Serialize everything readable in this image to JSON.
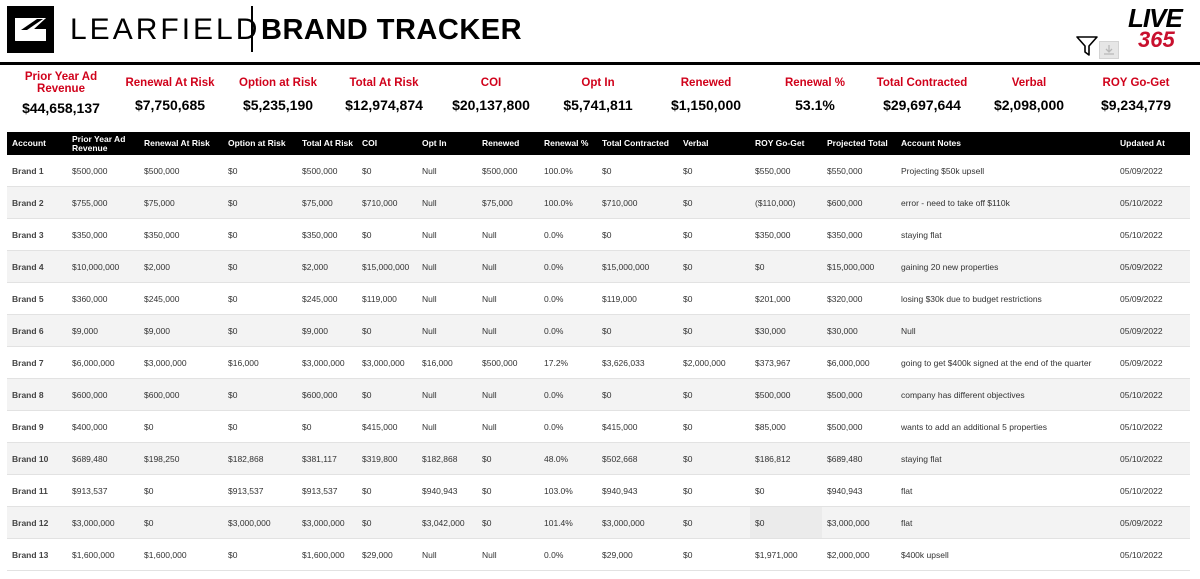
{
  "header": {
    "brand_left": "LEARFIELD",
    "brand_right": "BRAND TRACKER",
    "live_logo_text": "LIVE",
    "live_logo_num": "365"
  },
  "kpis": [
    {
      "label": "Prior Year Ad Revenue",
      "value": "$44,658,137"
    },
    {
      "label": "Renewal At Risk",
      "value": "$7,750,685"
    },
    {
      "label": "Option at Risk",
      "value": "$5,235,190"
    },
    {
      "label": "Total At Risk",
      "value": "$12,974,874"
    },
    {
      "label": "COI",
      "value": "$20,137,800"
    },
    {
      "label": "Opt In",
      "value": "$5,741,811"
    },
    {
      "label": "Renewed",
      "value": "$1,150,000"
    },
    {
      "label": "Renewal %",
      "value": "53.1%"
    },
    {
      "label": "Total Contracted",
      "value": "$29,697,644"
    },
    {
      "label": "Verbal",
      "value": "$2,098,000"
    },
    {
      "label": "ROY Go-Get",
      "value": "$9,234,779"
    }
  ],
  "table": {
    "columns": [
      "Account",
      "Prior Year Ad Revenue",
      "Renewal At Risk",
      "Option at Risk",
      "Total At Risk",
      "COI",
      "Opt In",
      "Renewed",
      "Renewal %",
      "Total Contracted",
      "Verbal",
      "ROY Go-Get",
      "Projected Total",
      "Account Notes",
      "Updated At"
    ],
    "rows": [
      [
        "Brand 1",
        "$500,000",
        "$500,000",
        "$0",
        "$500,000",
        "$0",
        "Null",
        "$500,000",
        "100.0%",
        "$0",
        "$0",
        "$550,000",
        "$550,000",
        "Projecting $50k upsell",
        "05/09/2022"
      ],
      [
        "Brand 2",
        "$755,000",
        "$75,000",
        "$0",
        "$75,000",
        "$710,000",
        "Null",
        "$75,000",
        "100.0%",
        "$710,000",
        "$0",
        "($110,000)",
        "$600,000",
        "error - need to take off $110k",
        "05/10/2022"
      ],
      [
        "Brand 3",
        "$350,000",
        "$350,000",
        "$0",
        "$350,000",
        "$0",
        "Null",
        "Null",
        "0.0%",
        "$0",
        "$0",
        "$350,000",
        "$350,000",
        "staying flat",
        "05/10/2022"
      ],
      [
        "Brand 4",
        "$10,000,000",
        "$2,000",
        "$0",
        "$2,000",
        "$15,000,000",
        "Null",
        "Null",
        "0.0%",
        "$15,000,000",
        "$0",
        "$0",
        "$15,000,000",
        "gaining 20 new properties",
        "05/09/2022"
      ],
      [
        "Brand 5",
        "$360,000",
        "$245,000",
        "$0",
        "$245,000",
        "$119,000",
        "Null",
        "Null",
        "0.0%",
        "$119,000",
        "$0",
        "$201,000",
        "$320,000",
        "losing $30k due to budget restrictions",
        "05/09/2022"
      ],
      [
        "Brand 6",
        "$9,000",
        "$9,000",
        "$0",
        "$9,000",
        "$0",
        "Null",
        "Null",
        "0.0%",
        "$0",
        "$0",
        "$30,000",
        "$30,000",
        "Null",
        "05/09/2022"
      ],
      [
        "Brand 7",
        "$6,000,000",
        "$3,000,000",
        "$16,000",
        "$3,000,000",
        "$3,000,000",
        "$16,000",
        "$500,000",
        "17.2%",
        "$3,626,033",
        "$2,000,000",
        "$373,967",
        "$6,000,000",
        "going to get $400k signed at the end of the quarter",
        "05/09/2022"
      ],
      [
        "Brand 8",
        "$600,000",
        "$600,000",
        "$0",
        "$600,000",
        "$0",
        "Null",
        "Null",
        "0.0%",
        "$0",
        "$0",
        "$500,000",
        "$500,000",
        "company has different objectives",
        "05/10/2022"
      ],
      [
        "Brand 9",
        "$400,000",
        "$0",
        "$0",
        "$0",
        "$415,000",
        "Null",
        "Null",
        "0.0%",
        "$415,000",
        "$0",
        "$85,000",
        "$500,000",
        "wants to add an additional 5 properties",
        "05/10/2022"
      ],
      [
        "Brand 10",
        "$689,480",
        "$198,250",
        "$182,868",
        "$381,117",
        "$319,800",
        "$182,868",
        "$0",
        "48.0%",
        "$502,668",
        "$0",
        "$186,812",
        "$689,480",
        "staying flat",
        "05/10/2022"
      ],
      [
        "Brand 11",
        "$913,537",
        "$0",
        "$913,537",
        "$913,537",
        "$0",
        "$940,943",
        "$0",
        "103.0%",
        "$940,943",
        "$0",
        "$0",
        "$940,943",
        "flat",
        "05/10/2022"
      ],
      [
        "Brand 12",
        "$3,000,000",
        "$0",
        "$3,000,000",
        "$3,000,000",
        "$0",
        "$3,042,000",
        "$0",
        "101.4%",
        "$3,000,000",
        "$0",
        "$0",
        "$3,000,000",
        "flat",
        "05/09/2022"
      ],
      [
        "Brand 13",
        "$1,600,000",
        "$1,600,000",
        "$0",
        "$1,600,000",
        "$29,000",
        "Null",
        "Null",
        "0.0%",
        "$29,000",
        "$0",
        "$1,971,000",
        "$2,000,000",
        "$400k upsell",
        "05/10/2022"
      ]
    ]
  }
}
